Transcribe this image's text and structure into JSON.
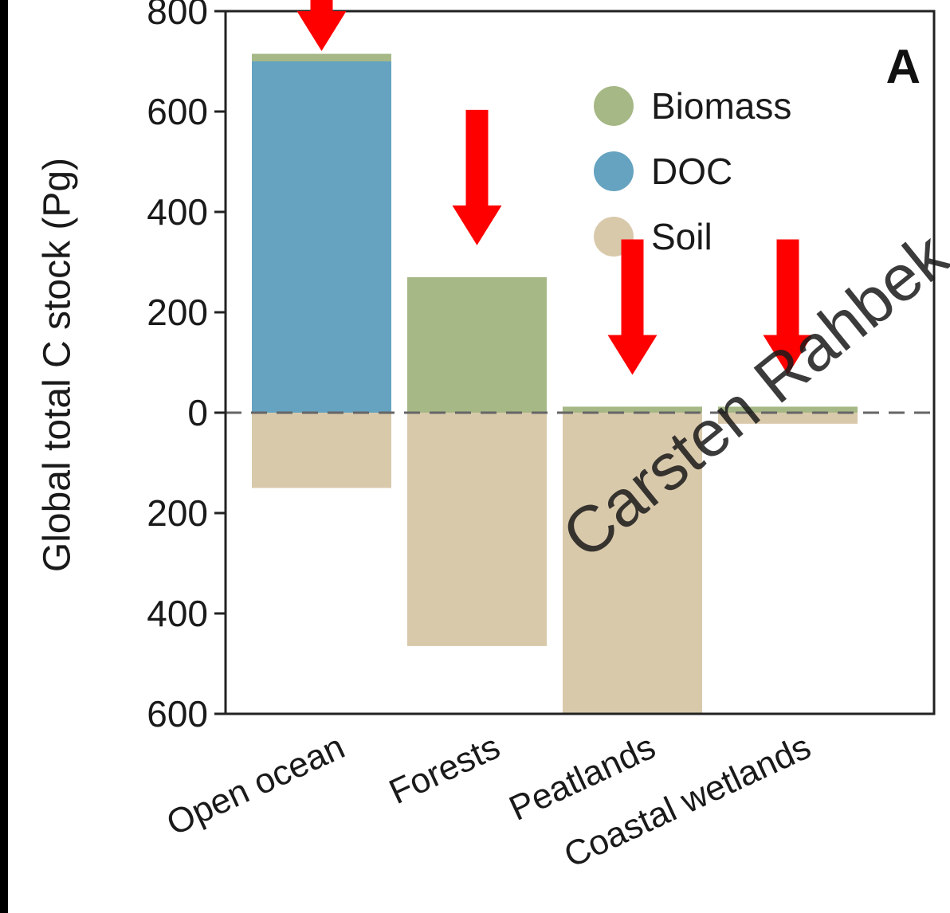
{
  "chart_data": {
    "type": "bar",
    "panel_label": "A",
    "ylabel": "Global total C stock (Pg)",
    "ylim": [
      -600,
      800
    ],
    "yticks": [
      800,
      600,
      400,
      200,
      0,
      -200,
      -400,
      -600
    ],
    "ytick_labels": [
      "800",
      "600",
      "400",
      "200",
      "0",
      "200",
      "400",
      "600"
    ],
    "categories": [
      "Open ocean",
      "Forests",
      "Peatlands",
      "Coastal wetlands"
    ],
    "series": [
      {
        "name": "Biomass",
        "color": "#a6b886",
        "direction": "up",
        "stack_on": "DOC",
        "values": [
          15,
          270,
          12,
          12
        ]
      },
      {
        "name": "DOC",
        "color": "#65a3c0",
        "direction": "up",
        "values": [
          700,
          0,
          0,
          0
        ]
      },
      {
        "name": "Soil",
        "color": "#d9c9ab",
        "direction": "down",
        "values": [
          150,
          465,
          600,
          22
        ]
      }
    ],
    "legend": {
      "placement": "top-right",
      "entries": [
        "Biomass",
        "DOC",
        "Soil"
      ]
    },
    "zero_line": "dashed",
    "annotations": {
      "arrows": {
        "color": "#ff0000",
        "marks": "red arrows pointing down above each category"
      },
      "watermark": "Carsten Rahbek"
    }
  }
}
